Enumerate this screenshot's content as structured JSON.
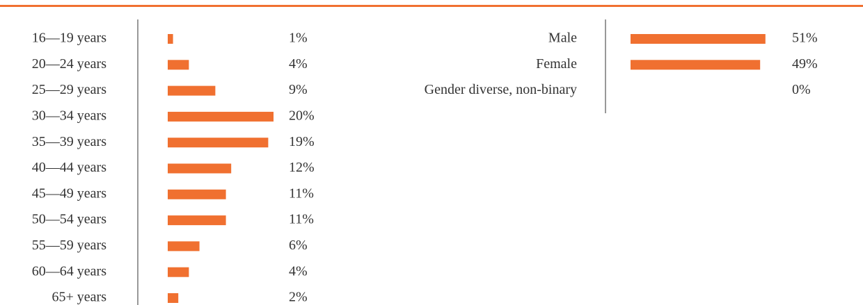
{
  "chart_data": [
    {
      "type": "bar",
      "orientation": "horizontal",
      "color": "#f07030",
      "categories": [
        "16—19 years",
        "20—24 years",
        "25—29 years",
        "30—34 years",
        "35—39 years",
        "40—44 years",
        "45—49 years",
        "50—54 years",
        "55—59 years",
        "60—64 years",
        "65+ years"
      ],
      "values": [
        1,
        4,
        9,
        20,
        19,
        12,
        11,
        11,
        6,
        4,
        2
      ],
      "value_labels": [
        "1%",
        "4%",
        "9%",
        "20%",
        "19%",
        "12%",
        "11%",
        "11%",
        "6%",
        "4%",
        "2%"
      ]
    },
    {
      "type": "bar",
      "orientation": "horizontal",
      "color": "#f07030",
      "categories": [
        "Male",
        "Female",
        "Gender diverse, non-binary"
      ],
      "values": [
        51,
        49,
        0
      ],
      "value_labels": [
        "51%",
        "49%",
        "0%"
      ]
    }
  ]
}
